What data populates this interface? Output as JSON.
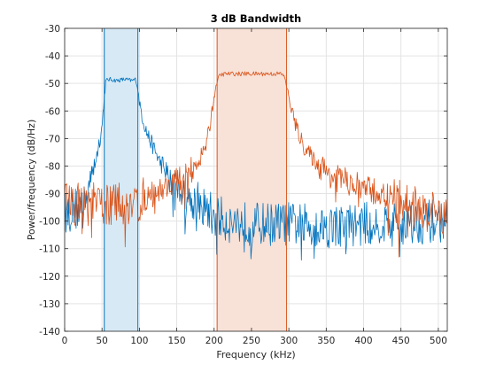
{
  "chart_data": {
    "type": "line",
    "title": "3 dB Bandwidth",
    "xlabel": "Frequency (kHz)",
    "ylabel": "Power/frequency (dB/Hz)",
    "xlim": [
      0,
      512
    ],
    "ylim": [
      -140,
      -30
    ],
    "xticks": [
      0,
      50,
      100,
      150,
      200,
      250,
      300,
      350,
      400,
      450,
      500
    ],
    "yticks": [
      -140,
      -130,
      -120,
      -110,
      -100,
      -90,
      -80,
      -70,
      -60,
      -50,
      -40,
      -30
    ],
    "grid": true,
    "bands": [
      {
        "x": [
          53,
          98
        ],
        "color": "#0072BD",
        "fill": "#d6e9f5"
      },
      {
        "x": [
          204,
          297
        ],
        "color": "#D95319",
        "fill": "#f8e1d7"
      }
    ],
    "series": [
      {
        "color": "#0072BD",
        "x": [
          0,
          10,
          20,
          30,
          40,
          50,
          53,
          55,
          60,
          70,
          80,
          90,
          95,
          98,
          100,
          105,
          110,
          120,
          130,
          140,
          150,
          160,
          170,
          180,
          190,
          200,
          220,
          250,
          300,
          350,
          400,
          450,
          500,
          512
        ],
        "y": [
          -97,
          -96,
          -95,
          -90,
          -80,
          -66,
          -55,
          -49,
          -48.5,
          -49,
          -48.5,
          -49,
          -48.5,
          -52,
          -57,
          -63,
          -68,
          -74,
          -80,
          -85,
          -88,
          -90,
          -92,
          -94,
          -96,
          -98,
          -100,
          -101,
          -101,
          -102,
          -101,
          -101,
          -100,
          -100
        ]
      },
      {
        "color": "#D95319",
        "x": [
          0,
          20,
          40,
          60,
          80,
          100,
          120,
          140,
          160,
          180,
          190,
          195,
          200,
          204,
          208,
          215,
          250,
          290,
          295,
          297,
          302,
          310,
          320,
          340,
          360,
          380,
          400,
          420,
          450,
          480,
          500,
          512
        ],
        "y": [
          -93,
          -94,
          -94,
          -94,
          -94,
          -93,
          -90,
          -87,
          -84,
          -78,
          -72,
          -64,
          -55,
          -49,
          -47,
          -46.5,
          -46.5,
          -46.5,
          -48,
          -51,
          -58,
          -66,
          -73,
          -80,
          -84,
          -86,
          -88,
          -90,
          -93,
          -96,
          -98,
          -98
        ]
      }
    ]
  }
}
